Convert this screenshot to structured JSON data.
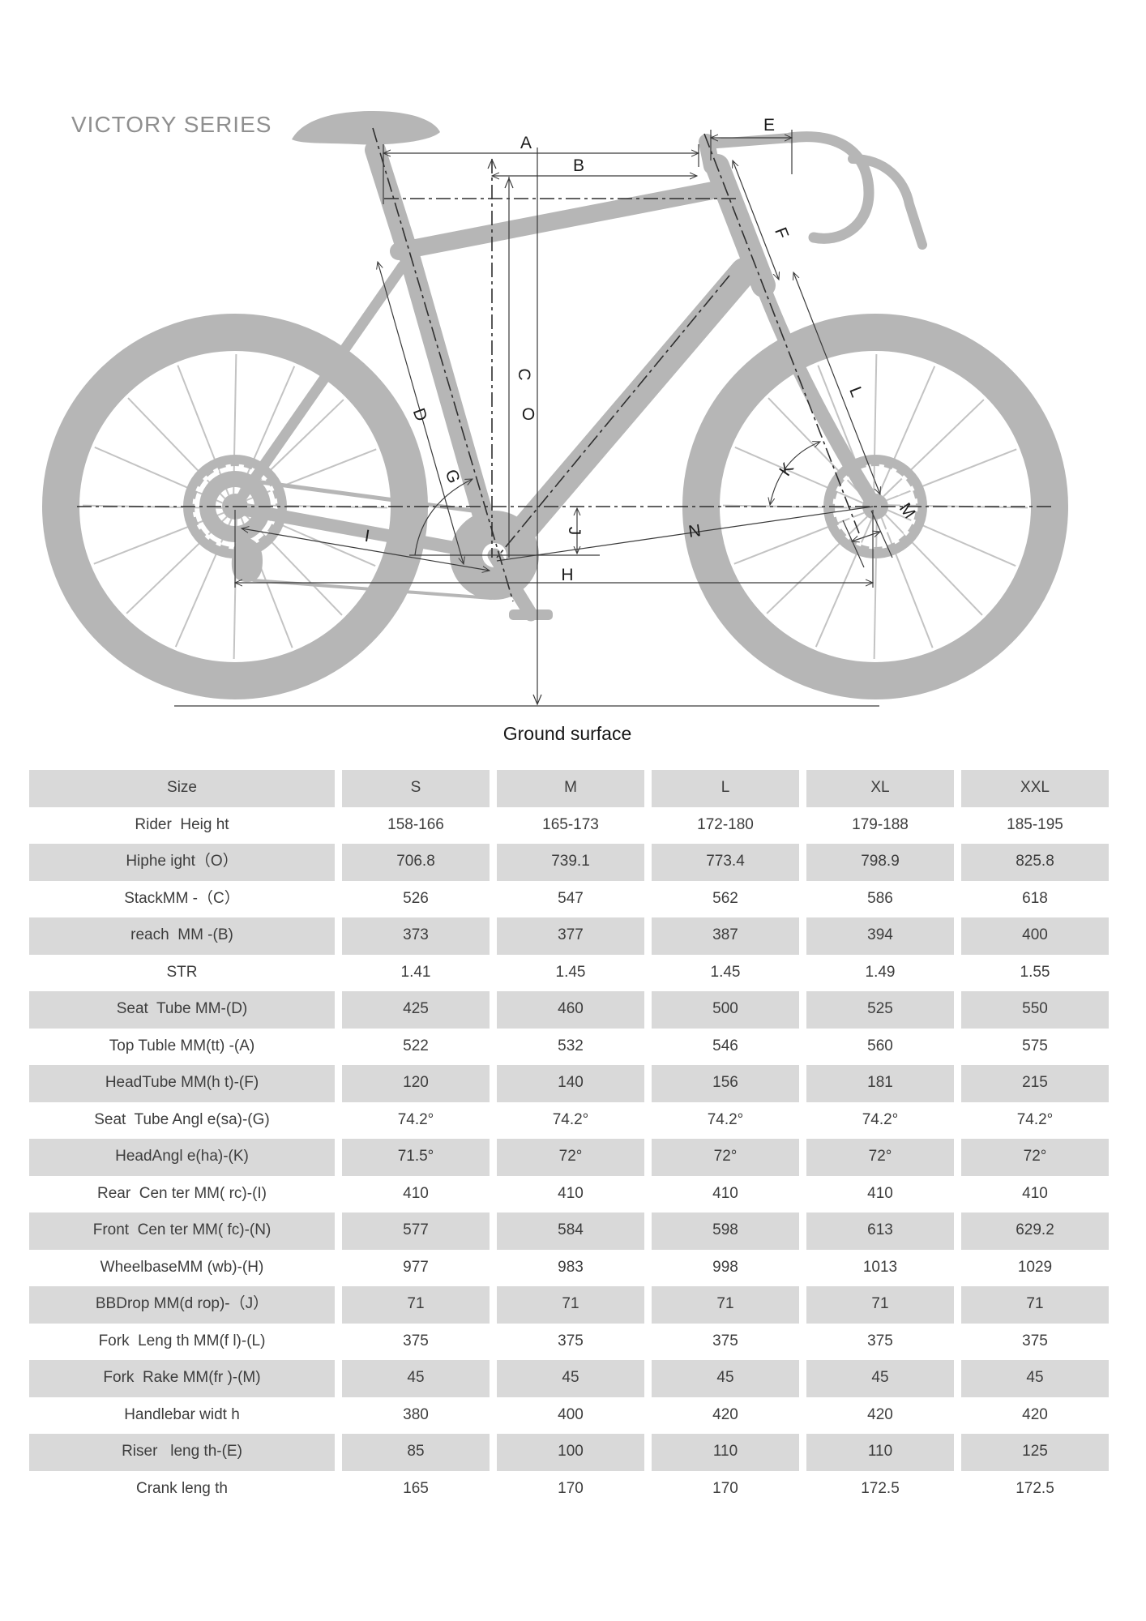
{
  "title": "VICTORY SERIES",
  "diagram": {
    "ground_label": "Ground surface",
    "labels": {
      "A": "A",
      "B": "B",
      "C": "C",
      "D": "D",
      "E": "E",
      "F": "F",
      "G": "G",
      "H": "H",
      "I": "I",
      "J": "J",
      "K": "K",
      "L": "L",
      "M": "M",
      "N": "N",
      "O": "O"
    }
  },
  "colors": {
    "row_shaded": "#d9d9d9",
    "bike_silhouette": "#b6b6b6",
    "title_text": "#8f8f8f"
  },
  "table": {
    "headers": [
      "Size",
      "S",
      "M",
      "L",
      "XL",
      "XXL"
    ],
    "rows": [
      {
        "label": "Rider  Heig ht",
        "values": [
          "158-166",
          "165-173",
          "172-180",
          "179-188",
          "185-195"
        ]
      },
      {
        "label": "Hiphe ight（O）",
        "values": [
          "706.8",
          "739.1",
          "773.4",
          "798.9",
          "825.8"
        ]
      },
      {
        "label": "StackMM -（C）",
        "values": [
          "526",
          "547",
          "562",
          "586",
          "618"
        ]
      },
      {
        "label": "reach  MM -(B)",
        "values": [
          "373",
          "377",
          "387",
          "394",
          "400"
        ]
      },
      {
        "label": "STR",
        "values": [
          "1.41",
          "1.45",
          "1.45",
          "1.49",
          "1.55"
        ]
      },
      {
        "label": "Seat  Tube MM-(D)",
        "values": [
          "425",
          "460",
          "500",
          "525",
          "550"
        ]
      },
      {
        "label": "Top Tuble MM(tt) -(A)",
        "values": [
          "522",
          "532",
          "546",
          "560",
          "575"
        ]
      },
      {
        "label": "HeadTube MM(h t)-(F)",
        "values": [
          "120",
          "140",
          "156",
          "181",
          "215"
        ]
      },
      {
        "label": "Seat  Tube Angl e(sa)-(G)",
        "values": [
          "74.2°",
          "74.2°",
          "74.2°",
          "74.2°",
          "74.2°"
        ]
      },
      {
        "label": "HeadAngl e(ha)-(K)",
        "values": [
          "71.5°",
          "72°",
          "72°",
          "72°",
          "72°"
        ]
      },
      {
        "label": "Rear  Cen ter MM( rc)-(I)",
        "values": [
          "410",
          "410",
          "410",
          "410",
          "410"
        ]
      },
      {
        "label": "Front  Cen ter MM( fc)-(N)",
        "values": [
          "577",
          "584",
          "598",
          "613",
          "629.2"
        ]
      },
      {
        "label": "WheelbaseMM (wb)-(H)",
        "values": [
          "977",
          "983",
          "998",
          "1013",
          "1029"
        ]
      },
      {
        "label": "BBDrop MM(d rop)-（J）",
        "values": [
          "71",
          "71",
          "71",
          "71",
          "71"
        ]
      },
      {
        "label": "Fork  Leng th MM(f l)-(L)",
        "values": [
          "375",
          "375",
          "375",
          "375",
          "375"
        ]
      },
      {
        "label": "Fork  Rake MM(fr )-(M)",
        "values": [
          "45",
          "45",
          "45",
          "45",
          "45"
        ]
      },
      {
        "label": "Handlebar widt h",
        "values": [
          "380",
          "400",
          "420",
          "420",
          "420"
        ]
      },
      {
        "label": "Riser   leng th-(E)",
        "values": [
          "85",
          "100",
          "110",
          "110",
          "125"
        ]
      },
      {
        "label": "Crank leng th",
        "values": [
          "165",
          "170",
          "170",
          "172.5",
          "172.5"
        ]
      }
    ]
  }
}
